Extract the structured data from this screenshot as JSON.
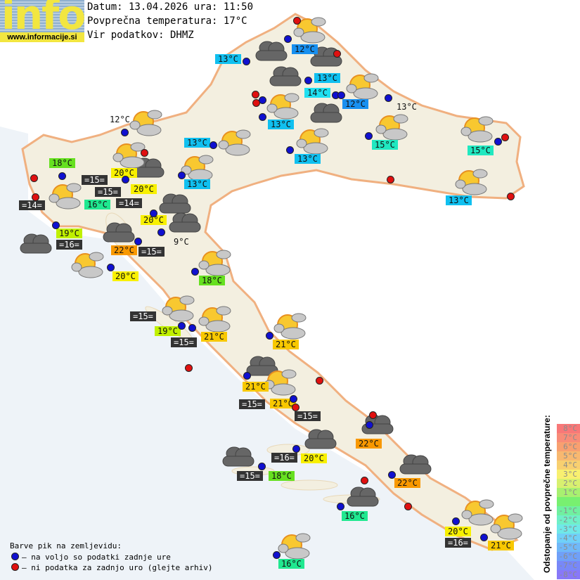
{
  "logo": {
    "word": "info",
    "url": "www.informacije.si",
    "colors": {
      "yellow": "#f2e640",
      "blue": "#8fb0cf"
    }
  },
  "header": {
    "date_line": "Datum: 13.04.2026 ura: 11:50",
    "avg_temp_line": "Povprečna temperatura: 17°C",
    "source_line": "Vir podatkov: DHMZ"
  },
  "labels": [
    {
      "text": "12°C",
      "color": "#1890f0"
    },
    {
      "text": "13°C",
      "color": "#10c0f0"
    },
    {
      "text": "13°C",
      "color": "#10c0f0"
    },
    {
      "text": "14°C",
      "color": "#20e0f0"
    },
    {
      "text": "12°C",
      "color": "#1890f0"
    },
    {
      "text": "13°C",
      "color": "#10c0f0"
    },
    {
      "text": "13°C",
      "color": "plain"
    },
    {
      "text": "12°C",
      "color": "plain"
    },
    {
      "text": "13°C",
      "color": "#10c0f0"
    },
    {
      "text": "15°C",
      "color": "#20e8c0"
    },
    {
      "text": "15°C",
      "color": "#20e8c0"
    },
    {
      "text": "13°C",
      "color": "#10c0f0"
    },
    {
      "text": "18°C",
      "color": "#66e020"
    },
    {
      "text": "20°C",
      "color": "#f8f000"
    },
    {
      "text": "13°C",
      "color": "#10c0f0"
    },
    {
      "text": "=15=",
      "color": "dark"
    },
    {
      "text": "=15=",
      "color": "dark"
    },
    {
      "text": "20°C",
      "color": "#f8f000"
    },
    {
      "text": "16°C",
      "color": "#20e890"
    },
    {
      "text": "=14=",
      "color": "dark"
    },
    {
      "text": "=14=",
      "color": "dark"
    },
    {
      "text": "13°C",
      "color": "#10c0f0"
    },
    {
      "text": "20°C",
      "color": "#f8f000"
    },
    {
      "text": "19°C",
      "color": "#c0f000"
    },
    {
      "text": "=16=",
      "color": "dark"
    },
    {
      "text": "22°C",
      "color": "#f89800"
    },
    {
      "text": "=15=",
      "color": "dark"
    },
    {
      "text": "9°C",
      "color": "plain"
    },
    {
      "text": "20°C",
      "color": "#f8f000"
    },
    {
      "text": "18°C",
      "color": "#66e020"
    },
    {
      "text": "=15=",
      "color": "dark"
    },
    {
      "text": "19°C",
      "color": "#c0f000"
    },
    {
      "text": "=15=",
      "color": "dark"
    },
    {
      "text": "21°C",
      "color": "#f8c800"
    },
    {
      "text": "21°C",
      "color": "#f8c800"
    },
    {
      "text": "21°C",
      "color": "#f8c800"
    },
    {
      "text": "=15=",
      "color": "dark"
    },
    {
      "text": "21°C",
      "color": "#f8c800"
    },
    {
      "text": "=15=",
      "color": "dark"
    },
    {
      "text": "22°C",
      "color": "#f89800"
    },
    {
      "text": "=16=",
      "color": "dark"
    },
    {
      "text": "20°C",
      "color": "#f8f000"
    },
    {
      "text": "=15=",
      "color": "dark"
    },
    {
      "text": "18°C",
      "color": "#66e020"
    },
    {
      "text": "22°C",
      "color": "#f89800"
    },
    {
      "text": "16°C",
      "color": "#20e890"
    },
    {
      "text": "20°C",
      "color": "#f8f000"
    },
    {
      "text": "=16=",
      "color": "dark"
    },
    {
      "text": "21°C",
      "color": "#f8c800"
    },
    {
      "text": "16°C",
      "color": "#20e890"
    }
  ],
  "legend": {
    "title": "Barve pik na zemljevidu:",
    "items": [
      {
        "text": "– na voljo so podatki zadnje ure",
        "color": "#1010d0"
      },
      {
        "text": "– ni podatka za zadnjo uro (glejte arhiv)",
        "color": "#e01010"
      }
    ]
  },
  "scale": {
    "title": "Odstopanje od povprečne temperature:",
    "steps": [
      {
        "text": "8°C",
        "color": "#f87878"
      },
      {
        "text": "7°C",
        "color": "#f88c78"
      },
      {
        "text": "6°C",
        "color": "#f8a070"
      },
      {
        "text": "5°C",
        "color": "#f8b870"
      },
      {
        "text": "4°C",
        "color": "#f8d070"
      },
      {
        "text": "3°C",
        "color": "#f8f070"
      },
      {
        "text": "2°C",
        "color": "#d8f070"
      },
      {
        "text": "1°C",
        "color": "#a8f070"
      },
      {
        "text": "",
        "color": "#78f070"
      },
      {
        "text": "-1°C",
        "color": "#70f0a0"
      },
      {
        "text": "-2°C",
        "color": "#70f0c8"
      },
      {
        "text": "-3°C",
        "color": "#70e8e8"
      },
      {
        "text": "-4°C",
        "color": "#70d0f8"
      },
      {
        "text": "-5°C",
        "color": "#70b8f8"
      },
      {
        "text": "-6°C",
        "color": "#70a0f8"
      },
      {
        "text": "-7°C",
        "color": "#7888f8"
      },
      {
        "text": "-8°C",
        "color": "#8878f8"
      }
    ]
  },
  "icons": {
    "partly_cloudy": "sun-cloud-icon",
    "overcast": "cloud-icon"
  }
}
